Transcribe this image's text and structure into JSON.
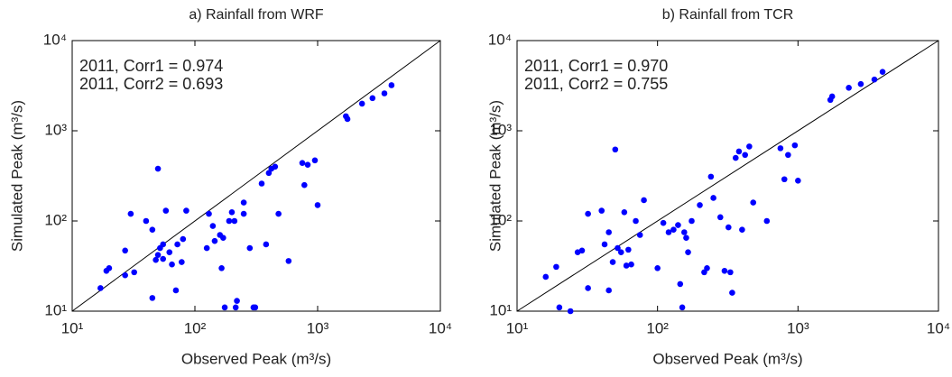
{
  "chart_data": [
    {
      "type": "scatter",
      "title": "a) Rainfall from WRF",
      "xlabel": "Observed Peak (m³/s)",
      "ylabel": "Simulated Peak (m³/s)",
      "annotations": [
        "2011, Corr1 = 0.974",
        "2011, Corr2 = 0.693"
      ],
      "xscale": "log",
      "yscale": "log",
      "identity_line": true,
      "xlim": [
        10,
        10000
      ],
      "ylim": [
        10,
        10000
      ],
      "xticks": [
        {
          "value": 10,
          "label": "10¹"
        },
        {
          "value": 100,
          "label": "10²"
        },
        {
          "value": 1000,
          "label": "10³"
        },
        {
          "value": 10000,
          "label": "10⁴"
        }
      ],
      "yticks": [
        {
          "value": 10,
          "label": "10¹"
        },
        {
          "value": 100,
          "label": "10²"
        },
        {
          "value": 1000,
          "label": "10³"
        },
        {
          "value": 10000,
          "label": "10⁴"
        }
      ],
      "series": [
        {
          "color": "#0000ff",
          "x": [
            17,
            19,
            20,
            27,
            27,
            30,
            32,
            40,
            45,
            45,
            48,
            50,
            50,
            52,
            55,
            55,
            58,
            62,
            65,
            70,
            72,
            78,
            80,
            85,
            125,
            130,
            140,
            145,
            160,
            165,
            170,
            175,
            190,
            200,
            210,
            215,
            220,
            250,
            250,
            280,
            300,
            310,
            350,
            380,
            400,
            420,
            450,
            480,
            580,
            750,
            780,
            830,
            950,
            1000,
            1700,
            1750,
            2300,
            2800,
            3500,
            4000
          ],
          "values": [
            18,
            28,
            30,
            25,
            47,
            120,
            27,
            100,
            80,
            14,
            37,
            380,
            42,
            50,
            55,
            38,
            130,
            45,
            33,
            17,
            55,
            35,
            63,
            130,
            50,
            120,
            88,
            60,
            70,
            30,
            65,
            11,
            100,
            125,
            100,
            11,
            13,
            160,
            120,
            50,
            11,
            11,
            260,
            55,
            340,
            380,
            400,
            120,
            36,
            440,
            250,
            420,
            470,
            150,
            1450,
            1350,
            2000,
            2300,
            2600,
            3200
          ]
        }
      ]
    },
    {
      "type": "scatter",
      "title": "b) Rainfall from TCR",
      "xlabel": "Observed Peak (m³/s)",
      "ylabel": "Simulated Peak (m³/s)",
      "annotations": [
        "2011, Corr1 = 0.970",
        "2011, Corr2 = 0.755"
      ],
      "xscale": "log",
      "yscale": "log",
      "identity_line": true,
      "xlim": [
        10,
        10000
      ],
      "ylim": [
        10,
        10000
      ],
      "xticks": [
        {
          "value": 10,
          "label": "10¹"
        },
        {
          "value": 100,
          "label": "10²"
        },
        {
          "value": 1000,
          "label": "10³"
        },
        {
          "value": 10000,
          "label": "10⁴"
        }
      ],
      "yticks": [
        {
          "value": 10,
          "label": "10¹"
        },
        {
          "value": 100,
          "label": "10²"
        },
        {
          "value": 1000,
          "label": "10³"
        },
        {
          "value": 10000,
          "label": "10⁴"
        }
      ],
      "series": [
        {
          "color": "#0000ff",
          "x": [
            16,
            19,
            20,
            24,
            27,
            29,
            32,
            32,
            40,
            42,
            45,
            45,
            48,
            50,
            52,
            55,
            58,
            60,
            62,
            65,
            70,
            75,
            80,
            100,
            110,
            120,
            130,
            140,
            145,
            150,
            155,
            160,
            165,
            175,
            200,
            215,
            225,
            240,
            250,
            280,
            300,
            320,
            330,
            340,
            360,
            380,
            400,
            420,
            450,
            480,
            600,
            750,
            800,
            850,
            950,
            1000,
            1700,
            1750,
            2300,
            2800,
            3500,
            4000
          ],
          "values": [
            24,
            31,
            11,
            10,
            45,
            47,
            120,
            18,
            130,
            55,
            75,
            17,
            35,
            620,
            50,
            45,
            125,
            32,
            48,
            33,
            100,
            70,
            170,
            30,
            95,
            75,
            80,
            90,
            20,
            11,
            75,
            65,
            45,
            100,
            150,
            27,
            30,
            310,
            180,
            110,
            28,
            85,
            27,
            16,
            500,
            590,
            80,
            540,
            670,
            160,
            100,
            640,
            290,
            540,
            690,
            280,
            2200,
            2400,
            3000,
            3300,
            3700,
            4500
          ]
        }
      ]
    }
  ]
}
